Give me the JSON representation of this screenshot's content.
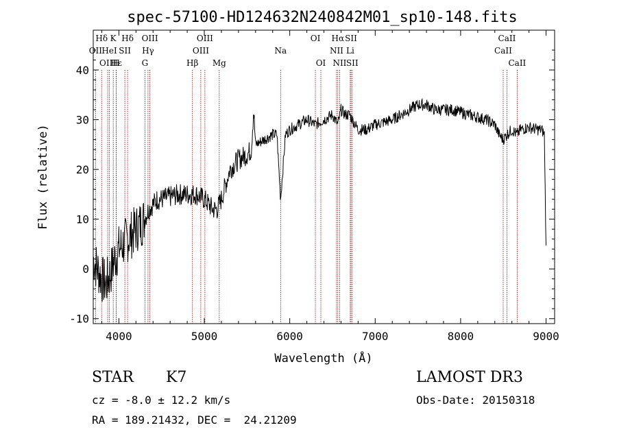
{
  "chart_data": {
    "type": "line",
    "title": "spec-57100-HD124632N240842M01_sp10-148.fits",
    "xlabel": "Wavelength (Å)",
    "ylabel": "Flux (relative)",
    "xlim": [
      3700,
      9100
    ],
    "ylim": [
      -11,
      48
    ],
    "xticks": [
      4000,
      5000,
      6000,
      7000,
      8000,
      9000
    ],
    "yticks": [
      -10,
      0,
      10,
      20,
      30,
      40
    ],
    "grid": false,
    "series": [
      {
        "name": "flux",
        "x": [
          3700,
          3750,
          3800,
          3850,
          3900,
          3950,
          4000,
          4050,
          4100,
          4150,
          4200,
          4250,
          4300,
          4350,
          4400,
          4450,
          4500,
          4600,
          4700,
          4800,
          4900,
          5000,
          5050,
          5100,
          5150,
          5200,
          5250,
          5300,
          5400,
          5500,
          5550,
          5577,
          5600,
          5700,
          5800,
          5850,
          5893,
          5950,
          6000,
          6100,
          6200,
          6300,
          6400,
          6500,
          6563,
          6600,
          6650,
          6700,
          6800,
          6900,
          7000,
          7100,
          7200,
          7300,
          7400,
          7500,
          7600,
          7700,
          7800,
          7900,
          8000,
          8100,
          8200,
          8300,
          8400,
          8450,
          8498,
          8542,
          8600,
          8662,
          8700,
          8800,
          8900,
          8950,
          8980,
          9000
        ],
        "y": [
          2,
          0,
          -2,
          -3,
          -1,
          2,
          4,
          5,
          6,
          7,
          8,
          9,
          10,
          12,
          13,
          14,
          14,
          14.5,
          15,
          15,
          15,
          14,
          13,
          12,
          12,
          14,
          17,
          20,
          22,
          23,
          24,
          32,
          25,
          26,
          27,
          27,
          14,
          27,
          28,
          29,
          30,
          29,
          30,
          31,
          29,
          32,
          31,
          31,
          28,
          28,
          29,
          29.5,
          30,
          31,
          32,
          33,
          33,
          32,
          32,
          32,
          31.5,
          31,
          30.5,
          30,
          29,
          27,
          26,
          27,
          28,
          27,
          28,
          28.5,
          28,
          28,
          27,
          4
        ]
      }
    ],
    "lines": [
      {
        "label": "Hδ",
        "wl": 3798,
        "row": 1
      },
      {
        "label": "OII",
        "wl": 3727,
        "row": 2
      },
      {
        "label": "OIII",
        "wl": 3869,
        "row": 3
      },
      {
        "label": "HeI",
        "wl": 3889,
        "row": 2
      },
      {
        "label": "K",
        "wl": 3934,
        "row": 1
      },
      {
        "label": "Hε",
        "wl": 3970,
        "row": 3
      },
      {
        "label": "SII",
        "wl": 4070,
        "row": 2
      },
      {
        "label": "H",
        "wl": 3968,
        "row": 3
      },
      {
        "label": "Hδ",
        "wl": 4102,
        "row": 1
      },
      {
        "label": "OIII",
        "wl": 4363,
        "row": 1
      },
      {
        "label": "Hγ",
        "wl": 4341,
        "row": 2
      },
      {
        "label": "G",
        "wl": 4305,
        "row": 3
      },
      {
        "label": "Hβ",
        "wl": 4861,
        "row": 3
      },
      {
        "label": "OIII",
        "wl": 5007,
        "row": 1
      },
      {
        "label": "OIII",
        "wl": 4959,
        "row": 2
      },
      {
        "label": "Mg",
        "wl": 5175,
        "row": 3
      },
      {
        "label": "Na",
        "wl": 5893,
        "row": 2
      },
      {
        "label": "OI",
        "wl": 6300,
        "row": 1
      },
      {
        "label": "OI",
        "wl": 6364,
        "row": 3
      },
      {
        "label": "Hα",
        "wl": 6563,
        "row": 1
      },
      {
        "label": "NII",
        "wl": 6548,
        "row": 2
      },
      {
        "label": "NII",
        "wl": 6584,
        "row": 3
      },
      {
        "label": "SII",
        "wl": 6717,
        "row": 1
      },
      {
        "label": "Li",
        "wl": 6708,
        "row": 2
      },
      {
        "label": "SII",
        "wl": 6731,
        "row": 3
      },
      {
        "label": "CaII",
        "wl": 8542,
        "row": 1
      },
      {
        "label": "CaII",
        "wl": 8498,
        "row": 2
      },
      {
        "label": "CaII",
        "wl": 8662,
        "row": 3
      }
    ]
  },
  "info": {
    "object_type": "STAR",
    "subclass": "K7",
    "survey": "LAMOST DR3",
    "cz": "cz = -8.0 ± 12.2 km/s",
    "obs_date": "Obs-Date: 20150318",
    "coords": "RA = 189.21432, DEC =  24.21209"
  },
  "colors": {
    "axis": "#000000",
    "line_marker": "#8b0000",
    "spectrum": "#000000"
  }
}
